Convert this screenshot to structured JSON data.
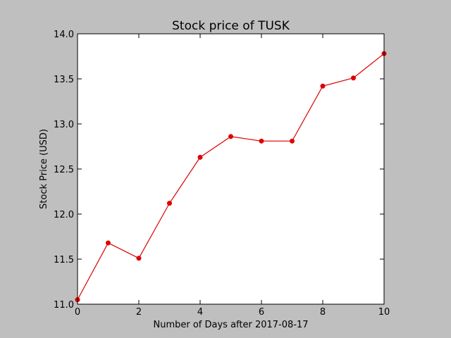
{
  "chart_data": {
    "type": "line",
    "title": "Stock price of TUSK",
    "xlabel": "Number of Days after 2017-08-17",
    "ylabel": "Stock Price (USD)",
    "xlim": [
      0,
      10
    ],
    "ylim": [
      11.0,
      14.0
    ],
    "x_ticks": [
      0,
      2,
      4,
      6,
      8,
      10
    ],
    "x_tick_labels": [
      "0",
      "2",
      "4",
      "6",
      "8",
      "10"
    ],
    "y_ticks": [
      11.0,
      11.5,
      12.0,
      12.5,
      13.0,
      13.5,
      14.0
    ],
    "y_tick_labels": [
      "11.0",
      "11.5",
      "12.0",
      "12.5",
      "13.0",
      "13.5",
      "14.0"
    ],
    "grid": false,
    "series": [
      {
        "name": "TUSK",
        "color": "#dd0000",
        "x": [
          0,
          1,
          2,
          3,
          4,
          5,
          6,
          7,
          8,
          9,
          10
        ],
        "values": [
          11.05,
          11.68,
          11.51,
          12.12,
          12.63,
          12.86,
          12.81,
          12.81,
          13.42,
          13.51,
          13.78
        ]
      }
    ]
  }
}
